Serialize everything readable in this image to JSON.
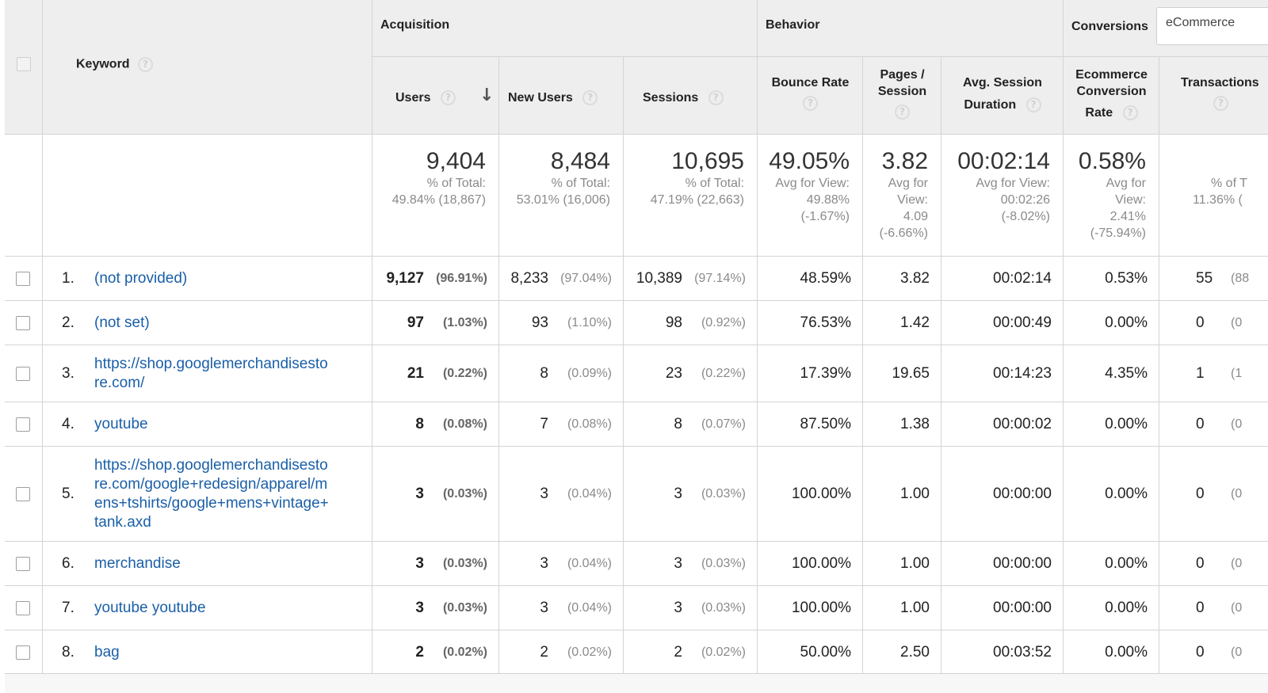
{
  "header": {
    "keyword_label": "Keyword",
    "groups": {
      "acquisition": "Acquisition",
      "behavior": "Behavior",
      "conversions": "Conversions"
    },
    "conversion_select": "eCommerce",
    "sort_arrow": "↓",
    "help_glyph": "?",
    "columns": {
      "users": "Users",
      "new_users": "New Users",
      "sessions": "Sessions",
      "bounce_rate": "Bounce Rate",
      "pages_l1": "Pages /",
      "pages_l2": "Session",
      "duration_l1": "Avg. Session",
      "duration_l2": "Duration",
      "ecr_l1": "Ecommerce",
      "ecr_l2": "Conversion",
      "ecr_l3": "Rate",
      "transactions": "Transactions"
    }
  },
  "totals": {
    "users": {
      "value": "9,404",
      "l1": "% of Total:",
      "l2": "49.84% (18,867)"
    },
    "new_users": {
      "value": "8,484",
      "l1": "% of Total:",
      "l2": "53.01% (16,006)"
    },
    "sessions": {
      "value": "10,695",
      "l1": "% of Total:",
      "l2": "47.19% (22,663)"
    },
    "bounce_rate": {
      "value": "49.05%",
      "l1": "Avg for View:",
      "l2": "49.88%",
      "l3": "(-1.67%)"
    },
    "pages": {
      "value": "3.82",
      "l1": "Avg for",
      "l2": "View:",
      "l3": "4.09",
      "l4": "(-6.66%)"
    },
    "duration": {
      "value": "00:02:14",
      "l1": "Avg for View:",
      "l2": "00:02:26",
      "l3": "(-8.02%)"
    },
    "ecr": {
      "value": "0.58%",
      "l1": "Avg for",
      "l2": "View:",
      "l3": "2.41%",
      "l4": "(-75.94%)"
    },
    "transactions": {
      "l1": "% of T",
      "l2": "11.36% ("
    }
  },
  "rows": [
    {
      "index": "1.",
      "keyword_lines": [
        "(not provided)"
      ],
      "users": "9,127",
      "users_pct": "(96.91%)",
      "new_users": "8,233",
      "new_users_pct": "(97.04%)",
      "sessions": "10,389",
      "sessions_pct": "(97.14%)",
      "bounce_rate": "48.59%",
      "pages": "3.82",
      "duration": "00:02:14",
      "ecr": "0.53%",
      "transactions": "55",
      "transactions_pct": "(88"
    },
    {
      "index": "2.",
      "keyword_lines": [
        "(not set)"
      ],
      "users": "97",
      "users_pct": "(1.03%)",
      "new_users": "93",
      "new_users_pct": "(1.10%)",
      "sessions": "98",
      "sessions_pct": "(0.92%)",
      "bounce_rate": "76.53%",
      "pages": "1.42",
      "duration": "00:00:49",
      "ecr": "0.00%",
      "transactions": "0",
      "transactions_pct": "(0"
    },
    {
      "index": "3.",
      "keyword_lines": [
        "https://shop.googlemerchandisesto",
        "re.com/"
      ],
      "users": "21",
      "users_pct": "(0.22%)",
      "new_users": "8",
      "new_users_pct": "(0.09%)",
      "sessions": "23",
      "sessions_pct": "(0.22%)",
      "bounce_rate": "17.39%",
      "pages": "19.65",
      "duration": "00:14:23",
      "ecr": "4.35%",
      "transactions": "1",
      "transactions_pct": "(1"
    },
    {
      "index": "4.",
      "keyword_lines": [
        "youtube"
      ],
      "users": "8",
      "users_pct": "(0.08%)",
      "new_users": "7",
      "new_users_pct": "(0.08%)",
      "sessions": "8",
      "sessions_pct": "(0.07%)",
      "bounce_rate": "87.50%",
      "pages": "1.38",
      "duration": "00:00:02",
      "ecr": "0.00%",
      "transactions": "0",
      "transactions_pct": "(0"
    },
    {
      "index": "5.",
      "keyword_lines": [
        "https://shop.googlemerchandisesto",
        "re.com/google+redesign/apparel/m",
        "ens+tshirts/google+mens+vintage+",
        "tank.axd"
      ],
      "users": "3",
      "users_pct": "(0.03%)",
      "new_users": "3",
      "new_users_pct": "(0.04%)",
      "sessions": "3",
      "sessions_pct": "(0.03%)",
      "bounce_rate": "100.00%",
      "pages": "1.00",
      "duration": "00:00:00",
      "ecr": "0.00%",
      "transactions": "0",
      "transactions_pct": "(0"
    },
    {
      "index": "6.",
      "keyword_lines": [
        "merchandise"
      ],
      "users": "3",
      "users_pct": "(0.03%)",
      "new_users": "3",
      "new_users_pct": "(0.04%)",
      "sessions": "3",
      "sessions_pct": "(0.03%)",
      "bounce_rate": "100.00%",
      "pages": "1.00",
      "duration": "00:00:00",
      "ecr": "0.00%",
      "transactions": "0",
      "transactions_pct": "(0"
    },
    {
      "index": "7.",
      "keyword_lines": [
        "youtube youtube"
      ],
      "users": "3",
      "users_pct": "(0.03%)",
      "new_users": "3",
      "new_users_pct": "(0.04%)",
      "sessions": "3",
      "sessions_pct": "(0.03%)",
      "bounce_rate": "100.00%",
      "pages": "1.00",
      "duration": "00:00:00",
      "ecr": "0.00%",
      "transactions": "0",
      "transactions_pct": "(0"
    },
    {
      "index": "8.",
      "keyword_lines": [
        "bag"
      ],
      "users": "2",
      "users_pct": "(0.02%)",
      "new_users": "2",
      "new_users_pct": "(0.02%)",
      "sessions": "2",
      "sessions_pct": "(0.02%)",
      "bounce_rate": "50.00%",
      "pages": "2.50",
      "duration": "00:03:52",
      "ecr": "0.00%",
      "transactions": "0",
      "transactions_pct": "(0"
    }
  ]
}
